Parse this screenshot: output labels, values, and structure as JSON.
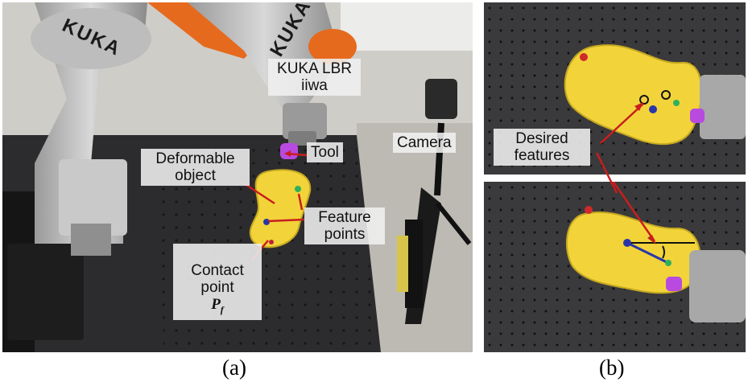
{
  "panel_a": {
    "robot_brand_upper": "KUKA",
    "robot_brand_lower": "KUKA",
    "label_robot": "KUKA LBR\niiwa",
    "label_tool": "Tool",
    "label_camera": "Camera",
    "label_object": "Deformable\nobject",
    "label_features": "Feature\npoints",
    "label_contact": "Contact\npoint",
    "contact_symbol": "P",
    "contact_subscript": "f",
    "caption": "(a)"
  },
  "panel_b": {
    "label_desired": "Desired\nfeatures",
    "caption": "(b)"
  },
  "colors": {
    "sponge": "#f2d43a",
    "arrow": "#c81e1e",
    "tool_tip": "#b84ae0",
    "table": "#2c2c2e"
  }
}
